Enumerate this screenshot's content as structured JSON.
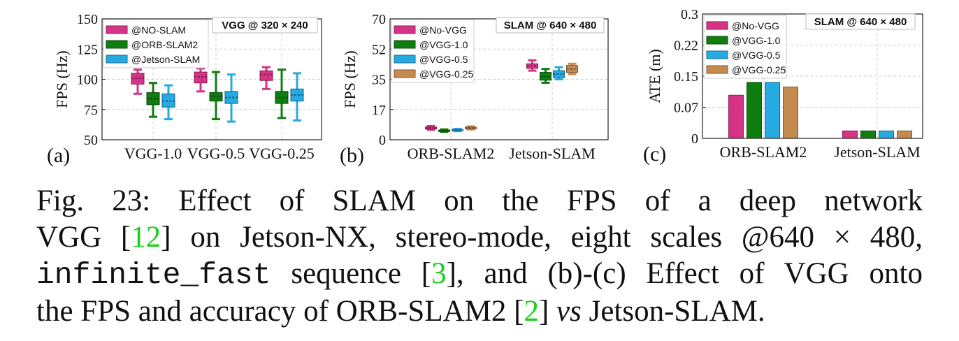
{
  "colors": {
    "magenta": "#d63384",
    "green": "#0f7d0f",
    "cyan": "#27a9e1",
    "tan": "#c48a4e",
    "grid": "#d0d0d0",
    "ref_link": "#18d018"
  },
  "chart_data": [
    {
      "type": "box",
      "panel_label": "(a)",
      "title": "VGG @ 320 × 240",
      "title_pre": "VGG",
      "title_post": "@ 320 × 240",
      "ylabel": "FPS (Hz)",
      "xlabel": "",
      "ylim": [
        50,
        150
      ],
      "yticks": [
        "50",
        "75",
        "100",
        "125",
        "150"
      ],
      "categories": [
        "VGG-1.0",
        "VGG-0.5",
        "VGG-0.25"
      ],
      "grid": true,
      "legend_position": "top-left",
      "series": [
        {
          "name": "@NO-SLAM",
          "color": "#d63384",
          "boxes": [
            {
              "min": 88,
              "q1": 96,
              "median": 101,
              "q3": 105,
              "max": 108
            },
            {
              "min": 90,
              "q1": 97,
              "median": 102,
              "q3": 106,
              "max": 109
            },
            {
              "min": 92,
              "q1": 99,
              "median": 104,
              "q3": 107,
              "max": 110
            }
          ]
        },
        {
          "name": "@ORB-SLAM2",
          "color": "#0f7d0f",
          "boxes": [
            {
              "min": 69,
              "q1": 79,
              "median": 84,
              "q3": 89,
              "max": 97
            },
            {
              "min": 67,
              "q1": 82,
              "median": 86,
              "q3": 89,
              "max": 106
            },
            {
              "min": 68,
              "q1": 80,
              "median": 85,
              "q3": 90,
              "max": 108
            }
          ]
        },
        {
          "name": "@Jetson-SLAM",
          "color": "#27a9e1",
          "boxes": [
            {
              "min": 67,
              "q1": 77,
              "median": 82,
              "q3": 88,
              "max": 95
            },
            {
              "min": 65,
              "q1": 80,
              "median": 85,
              "q3": 90,
              "max": 104
            },
            {
              "min": 66,
              "q1": 82,
              "median": 87,
              "q3": 92,
              "max": 105
            }
          ]
        }
      ]
    },
    {
      "type": "box",
      "panel_label": "(b)",
      "title": "SLAM @ 640 × 480",
      "title_pre": "SLAM",
      "title_post": "@ 640 × 480",
      "ylabel": "FPS (Hz)",
      "xlabel": "",
      "ylim": [
        0,
        70
      ],
      "yticks": [
        "0",
        "17",
        "35",
        "52",
        "70"
      ],
      "categories": [
        "ORB-SLAM2",
        "Jetson-SLAM"
      ],
      "grid": true,
      "legend_position": "top-left",
      "series": [
        {
          "name": "@No-VGG",
          "color": "#d63384",
          "boxes": [
            {
              "min": 5.8,
              "q1": 6.2,
              "median": 6.8,
              "q3": 7.4,
              "max": 7.9
            },
            {
              "min": 40,
              "q1": 41.3,
              "median": 42.8,
              "q3": 44,
              "max": 46
            }
          ]
        },
        {
          "name": "@VGG-1.0",
          "color": "#0f7d0f",
          "boxes": [
            {
              "min": 4.6,
              "q1": 4.9,
              "median": 5.2,
              "q3": 5.6,
              "max": 6.0
            },
            {
              "min": 33,
              "q1": 34.5,
              "median": 36.5,
              "q3": 39,
              "max": 41
            }
          ]
        },
        {
          "name": "@VGG-0.5",
          "color": "#27a9e1",
          "boxes": [
            {
              "min": 5.0,
              "q1": 5.3,
              "median": 5.6,
              "q3": 6.0,
              "max": 6.3
            },
            {
              "min": 35,
              "q1": 36,
              "median": 38,
              "q3": 40,
              "max": 42
            }
          ]
        },
        {
          "name": "@VGG-0.25",
          "color": "#c48a4e",
          "boxes": [
            {
              "min": 6.0,
              "q1": 6.3,
              "median": 6.8,
              "q3": 7.3,
              "max": 7.7
            },
            {
              "min": 38,
              "q1": 39,
              "median": 41,
              "q3": 43,
              "max": 44
            }
          ]
        }
      ]
    },
    {
      "type": "bar",
      "panel_label": "(c)",
      "title": "SLAM @ 640 × 480",
      "title_pre": "SLAM",
      "title_post": "@ 640 × 480",
      "ylabel": "ATE (m)",
      "xlabel": "",
      "ylim": [
        0,
        0.3
      ],
      "yticks": [
        "0",
        "0.07",
        "0.15",
        "0.22",
        "0.3"
      ],
      "categories": [
        "ORB-SLAM2",
        "Jetson-SLAM"
      ],
      "grid": true,
      "legend_position": "top-left",
      "series": [
        {
          "name": "@No-VGG",
          "color": "#d63384",
          "values": [
            0.104,
            0.018
          ]
        },
        {
          "name": "@VGG-1.0",
          "color": "#0f7d0f",
          "values": [
            0.135,
            0.018
          ]
        },
        {
          "name": "@VGG-0.5",
          "color": "#27a9e1",
          "values": [
            0.135,
            0.018
          ]
        },
        {
          "name": "@VGG-0.25",
          "color": "#c48a4e",
          "values": [
            0.124,
            0.018
          ]
        }
      ]
    }
  ],
  "caption": {
    "l1_a": "Fig. 23: Effect of SLAM on the FPS of a deep network",
    "l2_a": "VGG [",
    "l2_ref": "12",
    "l2_b": "] on Jetson-NX, stereo-mode, eight scales @640 × 480,",
    "l3_mono": "infinite_fast",
    "l3_a": " sequence [",
    "l3_ref": "3",
    "l3_b": "], and (b)-(c) Effect of VGG onto",
    "l4_a": "the FPS and accuracy of ORB-SLAM2 [",
    "l4_ref": "2",
    "l4_b": "] ",
    "l4_it": "vs",
    "l4_c": " Jetson-SLAM."
  }
}
